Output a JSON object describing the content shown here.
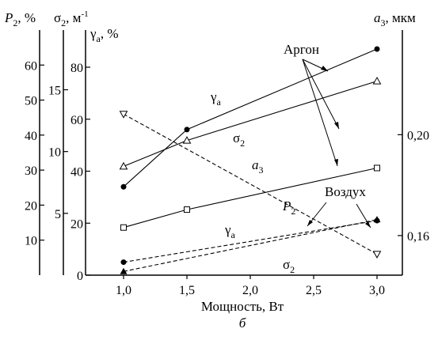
{
  "chart_data": {
    "type": "line",
    "title": "",
    "panel_label": "б",
    "xlabel": "Мощность, Вт",
    "x_ticks": [
      "1,0",
      "1,5",
      "2,0",
      "2,5",
      "3,0"
    ],
    "xlim": [
      0.7,
      3.2
    ],
    "axes": {
      "P2": {
        "label_main": "P",
        "label_sub": "2",
        "label_rest": ", %",
        "ticks": [
          10,
          20,
          30,
          40,
          50,
          60
        ],
        "range": [
          0,
          70
        ]
      },
      "sigma2": {
        "label_main": "σ",
        "label_sub": "2",
        "label_rest": ", м",
        "label_sup": "-1",
        "ticks": [
          5,
          10,
          15
        ],
        "range": [
          0,
          19.83
        ]
      },
      "gamma": {
        "label_main": "γ",
        "label_sub": "a",
        "label_rest": ", %",
        "ticks": [
          0,
          20,
          40,
          60,
          80
        ],
        "tick_labels": [
          "0",
          "20",
          "40",
          "60",
          "80"
        ],
        "range": [
          0,
          94.3
        ]
      },
      "a3": {
        "label_main": "a",
        "label_sub": "3",
        "label_rest": ", мкм",
        "ticks": [
          0.16,
          0.2
        ],
        "tick_labels": [
          "0,16",
          "0,20"
        ],
        "range": [
          0.1443,
          0.2415
        ]
      }
    },
    "series": [
      {
        "name": "γa",
        "group": "Аргон",
        "axis": "gamma",
        "style": "solid",
        "marker": "filled-circle",
        "x": [
          1.0,
          1.5,
          3.0
        ],
        "y": [
          34,
          56,
          87
        ]
      },
      {
        "name": "σ2",
        "group": "Аргон",
        "axis": "sigma2",
        "style": "solid",
        "marker": "open-triangle",
        "x": [
          1.0,
          1.5,
          3.0
        ],
        "y": [
          8.8,
          10.9,
          15.7
        ]
      },
      {
        "name": "a3",
        "group": "Аргон",
        "axis": "a3",
        "style": "solid",
        "marker": "open-square",
        "x": [
          1.0,
          1.5,
          3.0
        ],
        "y": [
          0.1632,
          0.1703,
          0.1868
        ]
      },
      {
        "name": "P2",
        "group": "Воздух",
        "axis": "P2",
        "style": "dashed",
        "marker": "open-triangle-down",
        "x": [
          1.0,
          3.0
        ],
        "y": [
          46,
          6
        ]
      },
      {
        "name": "γa",
        "group": "Воздух",
        "axis": "gamma",
        "style": "dashed",
        "marker": "filled-circle",
        "x": [
          1.0,
          3.0
        ],
        "y": [
          5,
          21
        ]
      },
      {
        "name": "σ2",
        "group": "Воздух",
        "axis": "sigma2",
        "style": "dashed",
        "marker": "filled-triangle",
        "x": [
          1.0,
          3.0
        ],
        "y": [
          0.3,
          4.5
        ]
      }
    ],
    "annotations": [
      {
        "text": "Аргон"
      },
      {
        "text": "Воздух"
      }
    ]
  }
}
